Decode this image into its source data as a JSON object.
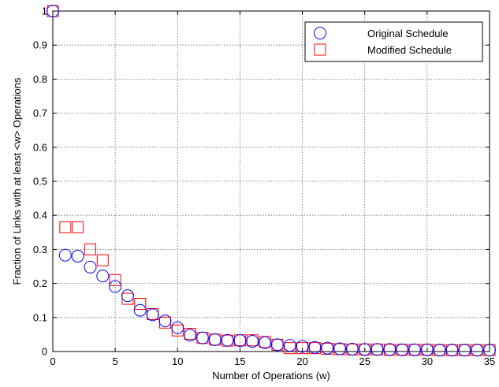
{
  "chart_data": {
    "type": "scatter",
    "xlabel": "Number of Operations (w)",
    "ylabel": "Fraction of Links with at least <w> Operations",
    "xlim": [
      0,
      35
    ],
    "ylim": [
      0,
      1
    ],
    "xticks": [
      0,
      5,
      10,
      15,
      20,
      25,
      30,
      35
    ],
    "xtick_labels": [
      "0",
      "5",
      "10",
      "15",
      "20",
      "25",
      "30",
      "35"
    ],
    "yticks": [
      0,
      0.1,
      0.2,
      0.3,
      0.4,
      0.5,
      0.6,
      0.7,
      0.8,
      0.9,
      1
    ],
    "ytick_labels": [
      "0",
      "0.1",
      "0.2",
      "0.3",
      "0.4",
      "0.5",
      "0.6",
      "0.7",
      "0.8",
      "0.9",
      "1"
    ],
    "grid": true,
    "legend_position": "top-right",
    "series": [
      {
        "name": "Original Schedule",
        "marker": "circle",
        "color": "#0000ff",
        "x": [
          0,
          1,
          2,
          3,
          4,
          5,
          6,
          7,
          8,
          9,
          10,
          11,
          12,
          13,
          14,
          15,
          16,
          17,
          18,
          19,
          20,
          21,
          22,
          23,
          24,
          25,
          26,
          27,
          28,
          29,
          30,
          31,
          32,
          33,
          34,
          35
        ],
        "y": [
          1.0,
          0.283,
          0.28,
          0.248,
          0.222,
          0.191,
          0.164,
          0.121,
          0.108,
          0.09,
          0.07,
          0.048,
          0.04,
          0.035,
          0.033,
          0.032,
          0.03,
          0.026,
          0.02,
          0.018,
          0.015,
          0.012,
          0.01,
          0.008,
          0.007,
          0.006,
          0.006,
          0.006,
          0.005,
          0.005,
          0.005,
          0.004,
          0.004,
          0.004,
          0.004,
          0.004
        ]
      },
      {
        "name": "Modified Schedule",
        "marker": "square",
        "color": "#ff0000",
        "x": [
          0,
          1,
          2,
          3,
          4,
          5,
          6,
          7,
          8,
          9,
          10,
          11,
          12,
          13,
          14,
          15,
          16,
          17,
          18,
          19,
          20,
          21,
          22,
          23,
          24,
          25,
          26,
          27,
          28,
          29,
          30,
          31,
          32,
          33,
          34,
          35
        ],
        "y": [
          1.0,
          0.365,
          0.365,
          0.3,
          0.268,
          0.21,
          0.155,
          0.14,
          0.11,
          0.085,
          0.062,
          0.052,
          0.04,
          0.035,
          0.032,
          0.033,
          0.033,
          0.028,
          0.02,
          0.01,
          0.01,
          0.01,
          0.008,
          0.007,
          0.006,
          0.006,
          0.006,
          0.005,
          0.005,
          0.005,
          0.005,
          0.004,
          0.004,
          0.004,
          0.004,
          0.004
        ]
      }
    ]
  }
}
